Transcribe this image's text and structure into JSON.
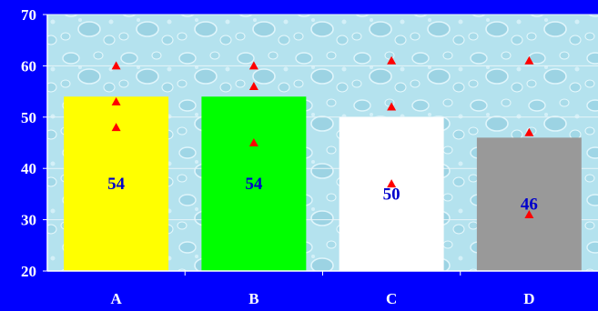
{
  "chart_data": {
    "type": "bar",
    "categories": [
      "A",
      "B",
      "C",
      "D"
    ],
    "values": [
      54,
      54,
      50,
      46
    ],
    "bar_colors": [
      "#ffff00",
      "#00ff00",
      "#ffffff",
      "#999999"
    ],
    "markers": [
      {
        "category": "A",
        "values": [
          60,
          53,
          48
        ]
      },
      {
        "category": "B",
        "values": [
          60,
          56,
          45
        ]
      },
      {
        "category": "C",
        "values": [
          61,
          52,
          37
        ]
      },
      {
        "category": "D",
        "values": [
          61,
          47,
          31
        ]
      }
    ],
    "marker_color": "#ff0000",
    "data_label_color": "#0000cc",
    "yticks": [
      20,
      30,
      40,
      50,
      60,
      70
    ],
    "ylim": [
      20,
      70
    ],
    "grid": true,
    "plot_background": "water-drops texture",
    "plot_background_color": "#b4e2ee",
    "page_background": "#0000ff",
    "title": "",
    "xlabel": "",
    "ylabel": ""
  }
}
